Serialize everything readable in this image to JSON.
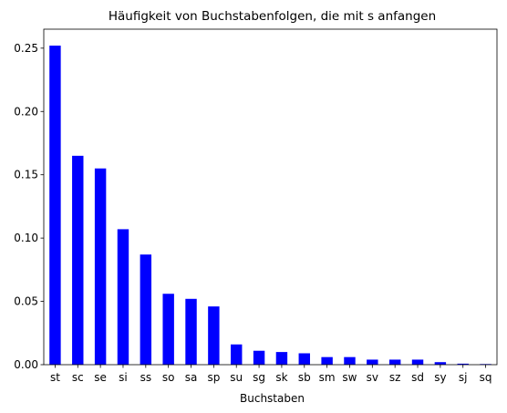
{
  "chart_data": {
    "type": "bar",
    "title": "Häufigkeit von Buchstabenfolgen, die mit s anfangen",
    "xlabel": "Buchstaben",
    "ylabel": "",
    "categories": [
      "st",
      "sc",
      "se",
      "si",
      "ss",
      "so",
      "sa",
      "sp",
      "su",
      "sg",
      "sk",
      "sb",
      "sm",
      "sw",
      "sv",
      "sz",
      "sd",
      "sy",
      "sj",
      "sq"
    ],
    "values": [
      0.252,
      0.165,
      0.155,
      0.107,
      0.087,
      0.056,
      0.052,
      0.046,
      0.016,
      0.011,
      0.01,
      0.009,
      0.006,
      0.006,
      0.004,
      0.004,
      0.004,
      0.002,
      0.0008,
      0.0005
    ],
    "ylim": [
      0,
      0.265
    ],
    "yticks": [
      0.0,
      0.05,
      0.1,
      0.15,
      0.2,
      0.25
    ],
    "ytick_labels": [
      "0.00",
      "0.05",
      "0.10",
      "0.15",
      "0.20",
      "0.25"
    ],
    "bar_color": "#0000ff",
    "grid": false,
    "legend": "none"
  }
}
